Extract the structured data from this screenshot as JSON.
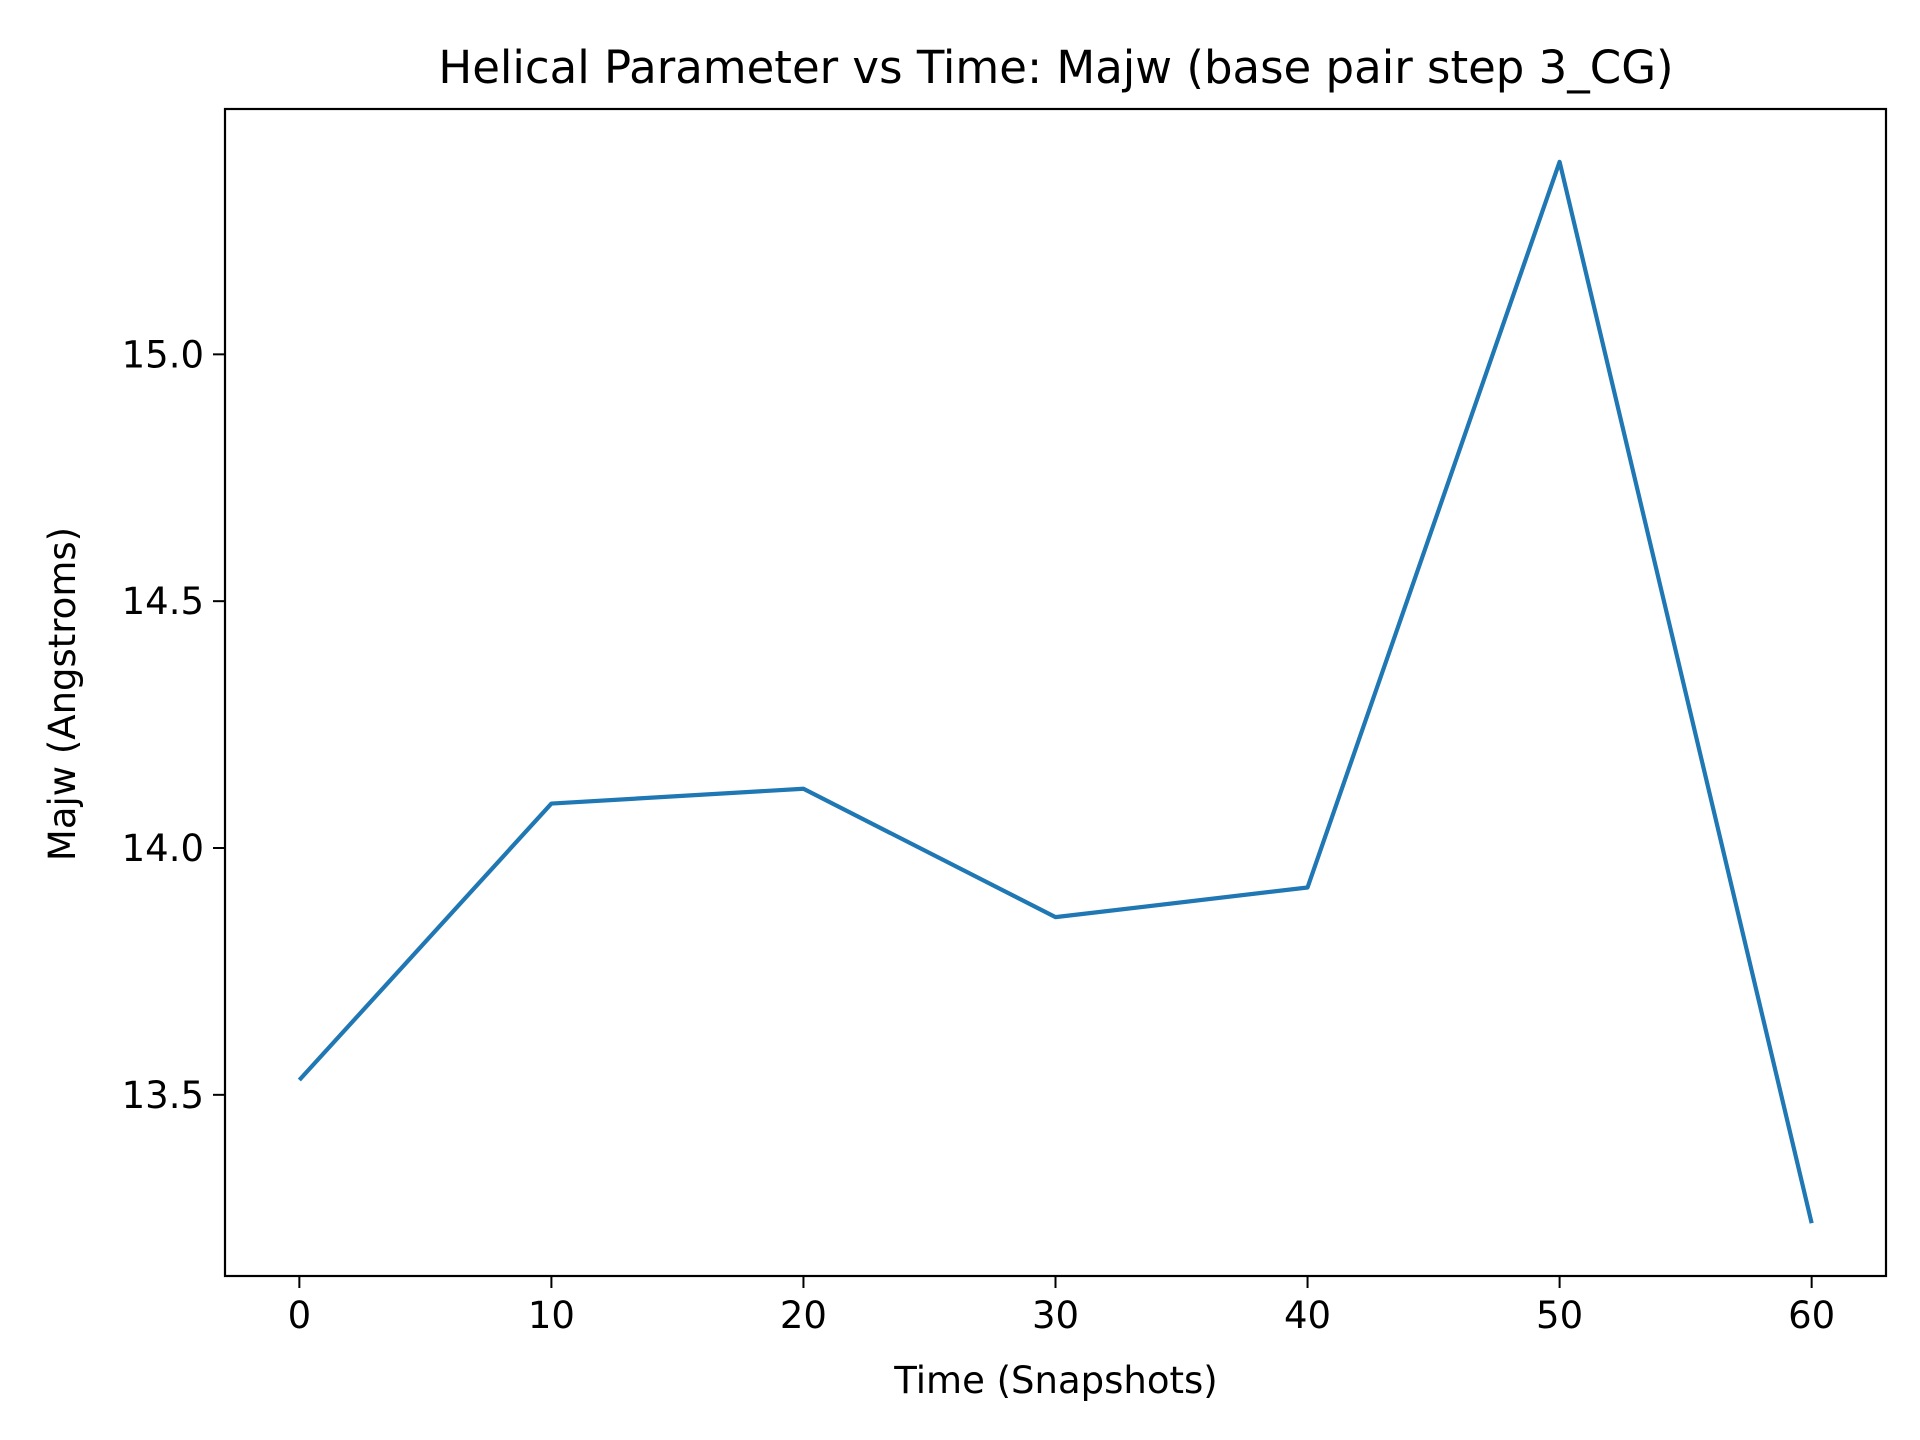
{
  "colors": {
    "line": "#1f77b4",
    "background": "#ffffff",
    "axes": "#000000"
  },
  "chart_data": {
    "type": "line",
    "title": "Helical Parameter vs Time: Majw (base pair step 3_CG)",
    "xlabel": "Time (Snapshots)",
    "ylabel": "Majw (Angstroms)",
    "x": [
      0,
      10,
      20,
      30,
      40,
      50,
      60
    ],
    "series": [
      {
        "values": [
          13.53,
          14.09,
          14.12,
          13.86,
          13.92,
          15.39,
          13.24
        ]
      }
    ],
    "xlim": [
      -2.95,
      62.95
    ],
    "ylim": [
      13.133,
      15.497
    ],
    "xticks": [
      0,
      10,
      20,
      30,
      40,
      50,
      60
    ],
    "xtick_labels": [
      "0",
      "10",
      "20",
      "30",
      "40",
      "50",
      "60"
    ],
    "yticks": [
      13.5,
      14.0,
      14.5,
      15.0
    ],
    "ytick_labels": [
      "13.5",
      "14.0",
      "14.5",
      "15.0"
    ],
    "grid": false,
    "legend": "none"
  }
}
